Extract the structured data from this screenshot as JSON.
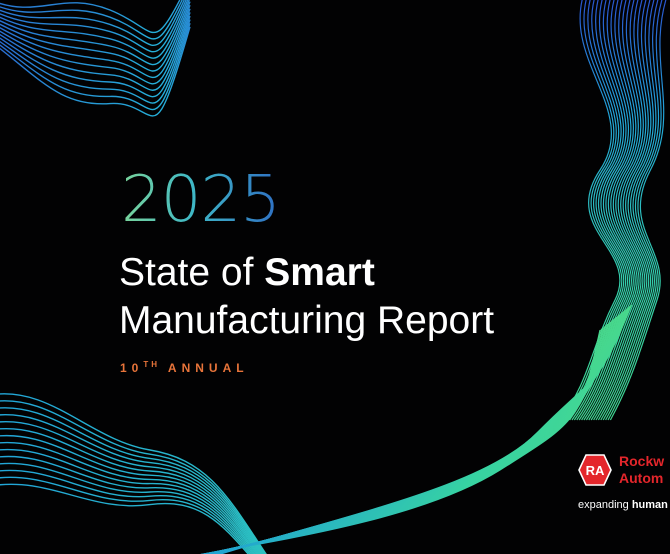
{
  "cover": {
    "year": "2025",
    "title_line1_regular": "State of ",
    "title_line1_bold": "Smart",
    "title_line2": "Manufacturing Report",
    "edition_number": "10",
    "edition_suffix": "TH",
    "edition_word": "ANNUAL"
  },
  "brand": {
    "badge_text": "RA",
    "name_line1": "Rockw",
    "name_line2": "Autom",
    "tagline_regular": "expanding ",
    "tagline_bold": "human"
  },
  "colors": {
    "background": "#020203",
    "year_gradient": [
      "#7ad49a",
      "#3fb8c6",
      "#2f6fc3"
    ],
    "accent_orange": "#e8743a",
    "brand_red": "#e4262b",
    "wave_colors": [
      "#2a5fd0",
      "#22a6d8",
      "#3fd0a0"
    ]
  }
}
